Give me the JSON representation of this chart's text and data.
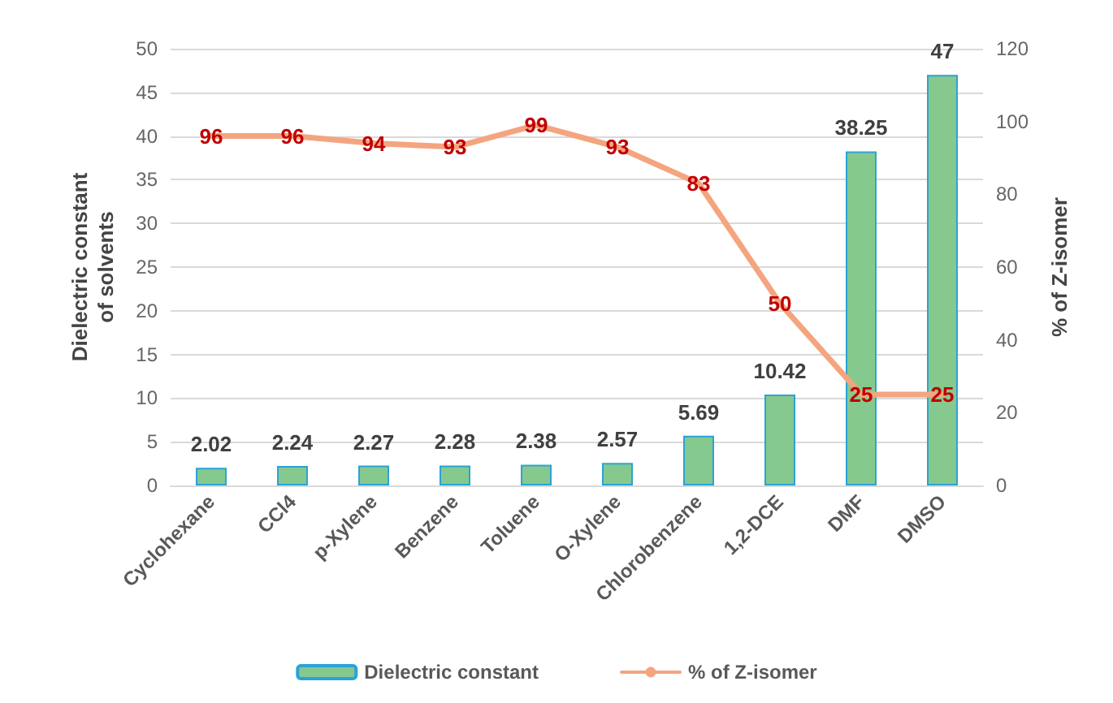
{
  "chart_data": {
    "type": "bar",
    "categories": [
      "Cyclohexane",
      "CCl4",
      "p-Xylene",
      "Benzene",
      "Toluene",
      "O-Xylene",
      "Chlorobenzene",
      "1,2-DCE",
      "DMF",
      "DMSO"
    ],
    "series": [
      {
        "name": "Dielectric constant",
        "color": "#86c98e",
        "values": [
          2.02,
          2.24,
          2.27,
          2.28,
          2.38,
          2.57,
          5.69,
          10.42,
          38.25,
          47
        ]
      },
      {
        "name": "% of Z-isomer",
        "type": "line",
        "axis": "y2",
        "color": "#f4a57f",
        "values": [
          96,
          96,
          94,
          93,
          99,
          93,
          83,
          50,
          25,
          25
        ]
      }
    ],
    "ylabel": "Dielectric constant\nof solvents",
    "y2label": "% of Z-isomer",
    "ylim": [
      0,
      50
    ],
    "yticks": [
      0,
      5,
      10,
      15,
      20,
      25,
      30,
      35,
      40,
      45,
      50
    ],
    "y2lim": [
      0,
      120
    ],
    "y2ticks": [
      0,
      20,
      40,
      60,
      80,
      100,
      120
    ],
    "grid": "y",
    "legend": "bottom",
    "data_labels": true,
    "marker": "none",
    "line_style": "solid"
  }
}
